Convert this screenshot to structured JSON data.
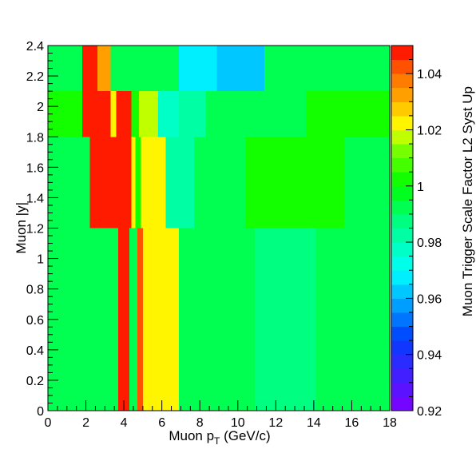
{
  "chart_data": {
    "type": "heatmap",
    "xlabel": "Muon p",
    "xlabel_sub": "T",
    "xlabel_unit": " (GeV/c)",
    "ylabel": "Muon |y|",
    "zlabel": "Muon Trigger Scale Factor L2 Syst Up",
    "xlim": [
      0,
      18
    ],
    "ylim": [
      0,
      2.4
    ],
    "zlim": [
      0.92,
      1.05
    ],
    "x_ticks": [
      "0",
      "2",
      "4",
      "6",
      "8",
      "10",
      "12",
      "14",
      "16",
      "18"
    ],
    "y_ticks": [
      "0",
      "0.2",
      "0.4",
      "0.6",
      "0.8",
      "1",
      "1.2",
      "1.4",
      "1.6",
      "1.8",
      "2",
      "2.2",
      "2.4"
    ],
    "z_ticks": [
      "0.92",
      "0.94",
      "0.96",
      "0.98",
      "1",
      "1.02",
      "1.04"
    ],
    "z_tick_values": [
      0.92,
      0.94,
      0.96,
      0.98,
      1.0,
      1.02,
      1.04
    ],
    "cells": [
      {
        "x": [
          0,
          3.7
        ],
        "y": [
          0,
          1.2
        ],
        "z": 0.995
      },
      {
        "x": [
          3.7,
          4.3
        ],
        "y": [
          0,
          1.2
        ],
        "z": 1.048
      },
      {
        "x": [
          4.3,
          4.7
        ],
        "y": [
          0,
          1.2
        ],
        "z": 0.995
      },
      {
        "x": [
          4.7,
          5.0
        ],
        "y": [
          0,
          1.2
        ],
        "z": 1.042
      },
      {
        "x": [
          5.0,
          6.9
        ],
        "y": [
          0,
          1.2
        ],
        "z": 1.022
      },
      {
        "x": [
          6.9,
          10.9
        ],
        "y": [
          0,
          1.2
        ],
        "z": 0.995
      },
      {
        "x": [
          10.9,
          14.1
        ],
        "y": [
          0,
          1.2
        ],
        "z": 0.99
      },
      {
        "x": [
          14.1,
          18
        ],
        "y": [
          0,
          1.2
        ],
        "z": 0.995
      },
      {
        "x": [
          0,
          2.2
        ],
        "y": [
          1.2,
          1.8
        ],
        "z": 0.995
      },
      {
        "x": [
          2.2,
          4.4
        ],
        "y": [
          1.2,
          1.8
        ],
        "z": 1.048
      },
      {
        "x": [
          4.4,
          4.6
        ],
        "y": [
          1.2,
          1.8
        ],
        "z": 1.025
      },
      {
        "x": [
          4.6,
          4.9
        ],
        "y": [
          1.2,
          1.8
        ],
        "z": 1.005
      },
      {
        "x": [
          4.9,
          6.2
        ],
        "y": [
          1.2,
          1.8
        ],
        "z": 1.022
      },
      {
        "x": [
          6.2,
          7.7
        ],
        "y": [
          1.2,
          1.8
        ],
        "z": 0.985
      },
      {
        "x": [
          7.7,
          10.4
        ],
        "y": [
          1.2,
          1.8
        ],
        "z": 0.995
      },
      {
        "x": [
          10.4,
          15.6
        ],
        "y": [
          1.2,
          1.8
        ],
        "z": 1.005
      },
      {
        "x": [
          15.6,
          18
        ],
        "y": [
          1.2,
          1.8
        ],
        "z": 0.995
      },
      {
        "x": [
          0,
          1.8
        ],
        "y": [
          1.8,
          2.1
        ],
        "z": 1.005
      },
      {
        "x": [
          1.8,
          3.3
        ],
        "y": [
          1.8,
          2.1
        ],
        "z": 1.048
      },
      {
        "x": [
          3.3,
          3.6
        ],
        "y": [
          1.8,
          2.1
        ],
        "z": 1.022
      },
      {
        "x": [
          3.6,
          4.4
        ],
        "y": [
          1.8,
          2.1
        ],
        "z": 1.048
      },
      {
        "x": [
          4.4,
          4.8
        ],
        "y": [
          1.8,
          2.1
        ],
        "z": 1.005
      },
      {
        "x": [
          4.8,
          5.8
        ],
        "y": [
          1.8,
          2.1
        ],
        "z": 1.02
      },
      {
        "x": [
          5.8,
          6.9
        ],
        "y": [
          1.8,
          2.1
        ],
        "z": 0.978
      },
      {
        "x": [
          6.9,
          8.3
        ],
        "y": [
          1.8,
          2.1
        ],
        "z": 0.985
      },
      {
        "x": [
          8.3,
          13.6
        ],
        "y": [
          1.8,
          2.1
        ],
        "z": 0.995
      },
      {
        "x": [
          13.6,
          18
        ],
        "y": [
          1.8,
          2.1
        ],
        "z": 1.005
      },
      {
        "x": [
          0,
          1.8
        ],
        "y": [
          2.1,
          2.4
        ],
        "z": 0.995
      },
      {
        "x": [
          1.8,
          2.6
        ],
        "y": [
          2.1,
          2.4
        ],
        "z": 1.048
      },
      {
        "x": [
          2.6,
          3.3
        ],
        "y": [
          2.1,
          2.4
        ],
        "z": 1.035
      },
      {
        "x": [
          3.3,
          6.9
        ],
        "y": [
          2.1,
          2.4
        ],
        "z": 0.995
      },
      {
        "x": [
          6.9,
          8.9
        ],
        "y": [
          2.1,
          2.4
        ],
        "z": 0.97
      },
      {
        "x": [
          8.9,
          11.4
        ],
        "y": [
          2.1,
          2.4
        ],
        "z": 0.963
      },
      {
        "x": [
          11.4,
          18
        ],
        "y": [
          2.1,
          2.4
        ],
        "z": 0.995
      }
    ]
  }
}
